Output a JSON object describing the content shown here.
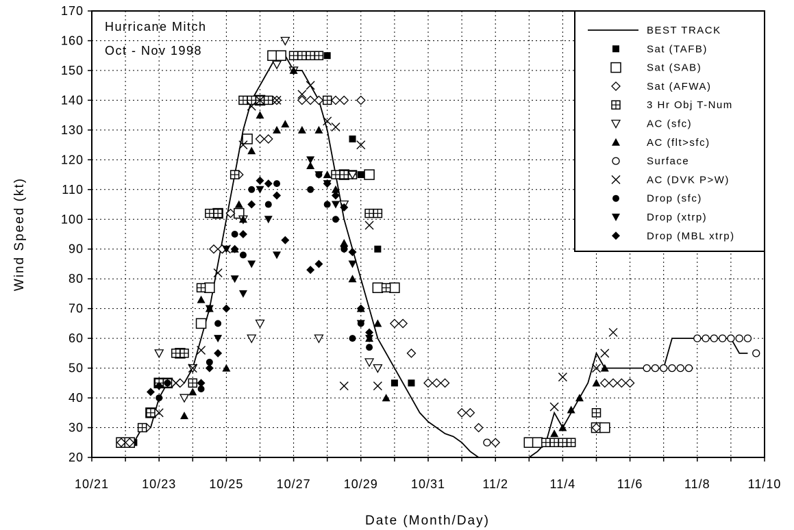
{
  "chart_data": {
    "type": "scatter",
    "title": "Hurricane Mitch",
    "subtitle": "Oct - Nov 1998",
    "xlabel": "Date (Month/Day)",
    "ylabel": "Wind Speed (kt)",
    "xlim": [
      "10/21",
      "11/10"
    ],
    "ylim": [
      20,
      170
    ],
    "y_ticks": [
      20,
      30,
      40,
      50,
      60,
      70,
      80,
      90,
      100,
      110,
      120,
      130,
      140,
      150,
      160,
      170
    ],
    "x_ticks": [
      "10/21",
      "10/23",
      "10/25",
      "10/27",
      "10/29",
      "10/31",
      "11/2",
      "11/4",
      "11/6",
      "11/8",
      "11/10"
    ],
    "grid": true,
    "legend_position": "top-right",
    "series": [
      {
        "name": "BEST TRACK",
        "marker": "line",
        "x": [
          "10/22 00Z",
          "10/22 06Z",
          "10/22 12Z",
          "10/22 18Z",
          "10/23 00Z",
          "10/23 06Z",
          "10/23 12Z",
          "10/23 18Z",
          "10/24 00Z",
          "10/24 06Z",
          "10/24 12Z",
          "10/24 18Z",
          "10/25 00Z",
          "10/25 06Z",
          "10/25 12Z",
          "10/25 18Z",
          "10/26 00Z",
          "10/26 06Z",
          "10/26 12Z",
          "10/26 18Z",
          "10/27 00Z",
          "10/27 06Z",
          "10/27 12Z",
          "10/27 18Z",
          "10/28 00Z",
          "10/28 06Z",
          "10/28 12Z",
          "10/28 18Z",
          "10/29 00Z",
          "10/29 06Z",
          "10/29 12Z",
          "10/29 18Z",
          "10/30 00Z",
          "10/30 06Z",
          "10/30 12Z",
          "10/30 18Z",
          "10/31 00Z",
          "10/31 06Z",
          "10/31 12Z",
          "10/31 18Z",
          "11/1 00Z",
          "11/1 06Z",
          "11/1 12Z",
          "11/1 18Z",
          "11/2 00Z",
          "11/2 06Z",
          "11/2 12Z",
          "11/2 18Z",
          "11/3 00Z",
          "11/3 06Z",
          "11/3 12Z",
          "11/3 18Z",
          "11/4 00Z",
          "11/4 06Z",
          "11/4 12Z",
          "11/4 18Z",
          "11/5 00Z",
          "11/5 06Z",
          "11/5 12Z",
          "11/5 18Z",
          "11/6 00Z",
          "11/6 06Z",
          "11/6 12Z",
          "11/6 18Z",
          "11/7 00Z",
          "11/7 06Z",
          "11/7 12Z",
          "11/7 18Z",
          "11/8 00Z",
          "11/8 06Z",
          "11/8 12Z",
          "11/8 18Z",
          "11/9 00Z",
          "11/9 06Z",
          "11/9 12Z"
        ],
        "y": [
          25,
          25,
          30,
          30,
          40,
          45,
          45,
          45,
          50,
          60,
          70,
          85,
          100,
          115,
          130,
          140,
          145,
          150,
          155,
          155,
          150,
          150,
          145,
          140,
          130,
          115,
          100,
          90,
          80,
          70,
          60,
          55,
          50,
          45,
          40,
          35,
          32,
          30,
          28,
          27,
          25,
          22,
          20,
          20,
          20,
          20,
          20,
          20,
          20,
          22,
          25,
          35,
          30,
          35,
          40,
          45,
          55,
          50,
          50,
          50,
          50,
          50,
          50,
          50,
          50,
          60,
          60,
          60,
          60,
          60,
          60,
          60,
          60,
          55,
          55
        ]
      },
      {
        "name": "Sat (TAFB)",
        "marker": "filled-square",
        "x": [
          "10/22 06Z",
          "10/22 12Z",
          "10/22 18Z",
          "10/23 00Z",
          "10/27 00Z",
          "10/27 06Z",
          "10/27 12Z",
          "10/28 00Z",
          "10/28 18Z",
          "10/29 00Z",
          "10/29 12Z",
          "10/30 00Z",
          "10/30 12Z"
        ],
        "y": [
          25,
          30,
          35,
          45,
          155,
          155,
          155,
          155,
          127,
          115,
          90,
          45,
          45
        ]
      },
      {
        "name": "Sat (SAB)",
        "marker": "open-square",
        "x": [
          "10/21 21Z",
          "10/22 03Z",
          "10/22 18Z",
          "10/23 00Z",
          "10/23 06Z",
          "10/23 15Z",
          "10/24 06Z",
          "10/24 12Z",
          "10/24 18Z",
          "10/25 09Z",
          "10/25 15Z",
          "10/26 00Z",
          "10/26 09Z",
          "10/26 15Z",
          "10/28 12Z",
          "10/29 06Z",
          "10/29 12Z",
          "10/30 00Z",
          "11/3 00Z",
          "11/3 06Z",
          "11/5 00Z",
          "11/5 06Z"
        ],
        "y": [
          25,
          25,
          35,
          45,
          45,
          55,
          65,
          77,
          102,
          102,
          127,
          140,
          155,
          155,
          115,
          115,
          77,
          77,
          25,
          25,
          30,
          30
        ]
      },
      {
        "name": "Sat (AFWA)",
        "marker": "open-diamond",
        "x": [
          "10/21 21Z",
          "10/22 03Z",
          "10/22 15Z",
          "10/22 21Z",
          "10/23 09Z",
          "10/23 15Z",
          "10/24 06Z",
          "10/24 15Z",
          "10/24 21Z",
          "10/25 03Z",
          "10/25 09Z",
          "10/26 00Z",
          "10/26 06Z",
          "10/26 12Z",
          "10/27 06Z",
          "10/27 12Z",
          "10/27 18Z",
          "10/28 06Z",
          "10/28 12Z",
          "10/29 00Z",
          "10/29 06Z",
          "10/29 12Z",
          "10/30 00Z",
          "10/30 06Z",
          "10/30 12Z",
          "10/31 00Z",
          "10/31 06Z",
          "10/31 12Z",
          "11/1 00Z",
          "11/1 06Z",
          "11/1 12Z",
          "11/2 00Z",
          "11/3 12Z",
          "11/3 18Z",
          "11/4 00Z",
          "11/4 06Z",
          "11/5 00Z",
          "11/5 06Z",
          "11/5 12Z",
          "11/5 18Z",
          "11/6 00Z"
        ],
        "y": [
          25,
          25,
          30,
          35,
          45,
          45,
          77,
          90,
          90,
          102,
          115,
          127,
          127,
          140,
          140,
          140,
          140,
          140,
          140,
          140,
          102,
          102,
          65,
          65,
          55,
          45,
          45,
          45,
          35,
          35,
          30,
          25,
          25,
          25,
          25,
          25,
          30,
          45,
          45,
          45,
          45
        ]
      },
      {
        "name": "3 Hr Obj T-Num",
        "marker": "boxed-plus",
        "x": [
          "10/22 12Z",
          "10/22 18Z",
          "10/23 00Z",
          "10/23 06Z",
          "10/23 12Z",
          "10/23 18Z",
          "10/24 00Z",
          "10/24 06Z",
          "10/24 12Z",
          "10/24 18Z",
          "10/25 06Z",
          "10/25 12Z",
          "10/25 18Z",
          "10/26 00Z",
          "10/26 06Z",
          "10/27 00Z",
          "10/27 06Z",
          "10/27 12Z",
          "10/27 18Z",
          "10/28 00Z",
          "10/28 06Z",
          "10/28 12Z",
          "10/28 18Z",
          "10/29 06Z",
          "10/29 12Z",
          "10/29 18Z",
          "11/3 12Z",
          "11/3 18Z",
          "11/4 00Z",
          "11/4 06Z",
          "11/5 00Z"
        ],
        "y": [
          30,
          35,
          45,
          45,
          55,
          55,
          45,
          77,
          102,
          102,
          115,
          140,
          140,
          140,
          140,
          155,
          155,
          155,
          155,
          140,
          115,
          115,
          115,
          102,
          102,
          77,
          25,
          25,
          25,
          25,
          35
        ]
      },
      {
        "name": "AC (sfc)",
        "marker": "open-triangle-down",
        "x": [
          "10/23 00Z",
          "10/23 18Z",
          "10/24 00Z",
          "10/25 12Z",
          "10/25 18Z",
          "10/26 00Z",
          "10/26 12Z",
          "10/26 18Z",
          "10/27 00Z",
          "10/27 18Z",
          "10/28 12Z",
          "10/28 18Z",
          "10/29 06Z",
          "10/29 12Z"
        ],
        "y": [
          55,
          40,
          50,
          100,
          60,
          65,
          152,
          160,
          150,
          60,
          105,
          115,
          52,
          50
        ]
      },
      {
        "name": "AC (flt>sfc)",
        "marker": "filled-triangle-up",
        "x": [
          "10/23 18Z",
          "10/24 00Z",
          "10/24 06Z",
          "10/24 12Z",
          "10/25 00Z",
          "10/25 06Z",
          "10/25 09Z",
          "10/25 12Z",
          "10/25 18Z",
          "10/26 00Z",
          "10/26 12Z",
          "10/26 18Z",
          "10/27 00Z",
          "10/27 06Z",
          "10/27 12Z",
          "10/27 18Z",
          "10/28 00Z",
          "10/28 06Z",
          "10/28 12Z",
          "10/28 18Z",
          "10/29 00Z",
          "10/29 06Z",
          "10/29 12Z",
          "10/29 18Z",
          "11/3 18Z",
          "11/4 00Z",
          "11/4 06Z",
          "11/4 12Z",
          "11/5 00Z",
          "11/5 06Z"
        ],
        "y": [
          34,
          42,
          73,
          70,
          50,
          90,
          105,
          100,
          123,
          135,
          130,
          132,
          150,
          130,
          118,
          130,
          115,
          110,
          92,
          80,
          70,
          60,
          65,
          40,
          28,
          30,
          36,
          40,
          45,
          50
        ]
      },
      {
        "name": "Surface",
        "marker": "open-circle",
        "x": [
          "11/1 18Z",
          "11/6 12Z",
          "11/6 18Z",
          "11/7 00Z",
          "11/7 06Z",
          "11/7 12Z",
          "11/7 18Z",
          "11/8 00Z",
          "11/8 06Z",
          "11/8 12Z",
          "11/8 18Z",
          "11/9 00Z",
          "11/9 06Z",
          "11/9 12Z",
          "11/9 18Z"
        ],
        "y": [
          25,
          50,
          50,
          50,
          50,
          50,
          50,
          60,
          60,
          60,
          60,
          60,
          60,
          60,
          55
        ]
      },
      {
        "name": "AC (DVK P>W)",
        "marker": "x-cross",
        "x": [
          "10/23 00Z",
          "10/23 12Z",
          "10/24 00Z",
          "10/24 06Z",
          "10/24 18Z",
          "10/25 00Z",
          "10/25 12Z",
          "10/25 18Z",
          "10/26 00Z",
          "10/26 12Z",
          "10/27 06Z",
          "10/27 12Z",
          "10/28 00Z",
          "10/28 06Z",
          "10/28 12Z",
          "10/29 00Z",
          "10/29 06Z",
          "10/29 12Z",
          "11/3 18Z",
          "11/4 00Z",
          "11/5 00Z",
          "11/5 06Z",
          "11/5 12Z"
        ],
        "y": [
          35,
          45,
          50,
          56,
          82,
          90,
          125,
          138,
          140,
          140,
          142,
          145,
          133,
          131,
          44,
          125,
          98,
          44,
          37,
          47,
          50,
          55,
          62
        ]
      },
      {
        "name": "Drop (sfc)",
        "marker": "filled-circle",
        "x": [
          "10/23 00Z",
          "10/23 06Z",
          "10/24 06Z",
          "10/24 12Z",
          "10/24 18Z",
          "10/25 06Z",
          "10/25 12Z",
          "10/25 18Z",
          "10/26 06Z",
          "10/26 12Z",
          "10/27 12Z",
          "10/27 18Z",
          "10/28 00Z",
          "10/28 06Z",
          "10/28 12Z",
          "10/28 18Z",
          "10/29 00Z",
          "10/29 06Z"
        ],
        "y": [
          40,
          45,
          43,
          52,
          65,
          95,
          88,
          110,
          105,
          112,
          110,
          115,
          105,
          100,
          90,
          60,
          65,
          57
        ]
      },
      {
        "name": "Drop (xtrp)",
        "marker": "filled-triangle-down",
        "x": [
          "10/24 12Z",
          "10/24 18Z",
          "10/25 00Z",
          "10/25 06Z",
          "10/25 12Z",
          "10/25 18Z",
          "10/26 00Z",
          "10/26 06Z",
          "10/26 12Z",
          "10/27 12Z",
          "10/27 18Z",
          "10/28 00Z",
          "10/28 06Z",
          "10/28 12Z",
          "10/28 18Z",
          "10/29 00Z",
          "10/29 06Z"
        ],
        "y": [
          70,
          60,
          90,
          80,
          75,
          85,
          110,
          100,
          88,
          120,
          115,
          112,
          105,
          90,
          85,
          65,
          60
        ]
      },
      {
        "name": "Drop (MBL xtrp)",
        "marker": "filled-diamond",
        "x": [
          "10/22 18Z",
          "10/23 00Z",
          "10/24 06Z",
          "10/24 12Z",
          "10/24 18Z",
          "10/25 00Z",
          "10/25 06Z",
          "10/25 12Z",
          "10/25 18Z",
          "10/26 00Z",
          "10/26 06Z",
          "10/26 12Z",
          "10/26 18Z",
          "10/27 12Z",
          "10/27 18Z",
          "10/28 00Z",
          "10/28 06Z",
          "10/28 12Z",
          "10/28 18Z",
          "10/29 00Z",
          "10/29 06Z"
        ],
        "y": [
          42,
          44,
          45,
          50,
          55,
          70,
          90,
          95,
          105,
          113,
          112,
          108,
          93,
          83,
          85,
          112,
          108,
          104,
          89,
          70,
          62
        ]
      }
    ]
  }
}
